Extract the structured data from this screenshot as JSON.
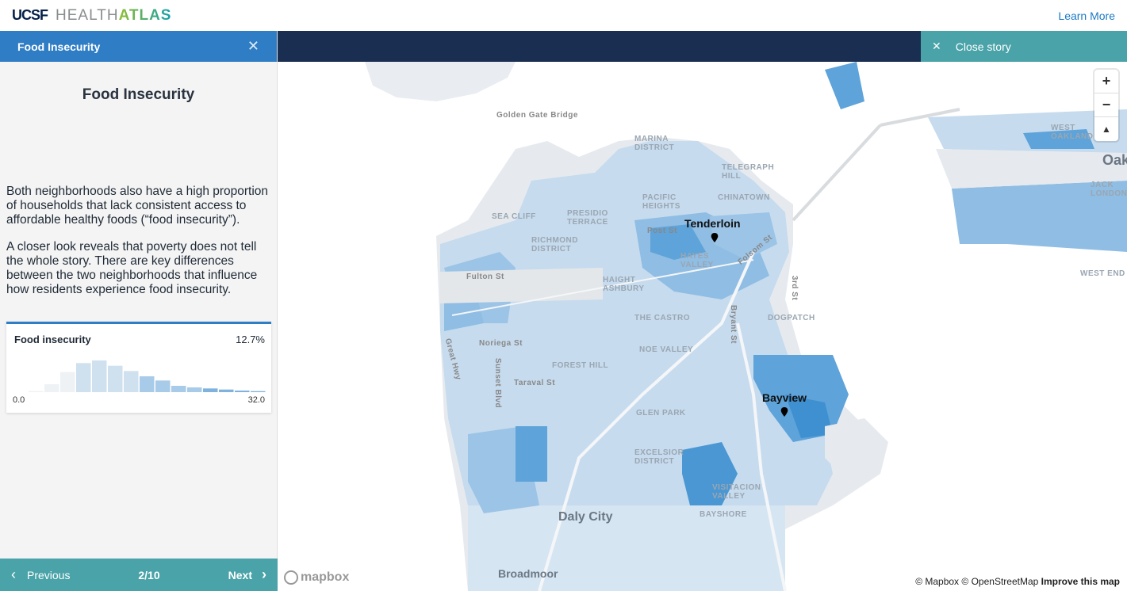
{
  "brand": {
    "ucsf": "UCSF",
    "health": "HEALTH",
    "atlas": "ATLAS",
    "learn_more": "Learn More"
  },
  "panel": {
    "tab_title": "Food Insecurity",
    "story_title": "Food Insecurity",
    "paragraphs": [
      "Both neighborhoods also have a high proportion of households that lack consistent access to affordable healthy foods (“food insecurity”).",
      "A closer look reveals that poverty does not tell the whole story. There are key differences between the two neighborhoods that influence how residents experience food insecurity."
    ],
    "card": {
      "label": "Food insecurity",
      "value": "12.7%",
      "min": "0.0",
      "max": "32.0",
      "histogram": [
        0.02,
        0.15,
        0.38,
        0.55,
        0.6,
        0.5,
        0.4,
        0.3,
        0.22,
        0.12,
        0.09,
        0.07,
        0.05,
        0.03,
        0.02
      ]
    },
    "footer": {
      "previous": "Previous",
      "counter": "2/10",
      "next": "Next"
    }
  },
  "map": {
    "close_story": "Close story",
    "labels": {
      "golden_gate": "Golden Gate Bridge",
      "marina": "MARINA DISTRICT",
      "telegraph": "TELEGRAPH HILL",
      "pacific": "PACIFIC HEIGHTS",
      "chinatown": "CHINATOWN",
      "sea_cliff": "SEA CLIFF",
      "presidio": "PRESIDIO TERRACE",
      "richmond": "RICHMOND DISTRICT",
      "haight": "HAIGHT ASHBURY",
      "hayes": "HAYES VALLEY",
      "castro": "THE CASTRO",
      "dogpatch": "DOGPATCH",
      "noe": "NOE VALLEY",
      "forest": "FOREST HILL",
      "glen": "GLEN PARK",
      "excelsior": "EXCELSIOR DISTRICT",
      "visitacion": "VISITACION VALLEY",
      "bayshore": "BAYSHORE",
      "west_oakland": "WEST OAKLAND",
      "jack_london": "JACK LONDON",
      "west_end": "WEST END",
      "oak": "Oak",
      "fulton": "Fulton St",
      "post": "Post St",
      "folsom": "Folsom St",
      "third": "3rd St",
      "noriega": "Noriega St",
      "taraval": "Taraval St",
      "sunset": "Sunset Blvd",
      "great_hwy": "Great Hwy",
      "bryant": "Bryant St",
      "daly_city": "Daly City",
      "broadmoor": "Broadmoor"
    },
    "pois": {
      "tenderloin": "Tenderloin",
      "bayview": "Bayview"
    },
    "attribution": {
      "mapbox": "© Mapbox",
      "osm": "© OpenStreetMap",
      "improve": "Improve this map",
      "logo": "mapbox"
    },
    "colors": {
      "light": "#c8dcee",
      "mid": "#8fbde3",
      "dark": "#3f90d0"
    }
  }
}
